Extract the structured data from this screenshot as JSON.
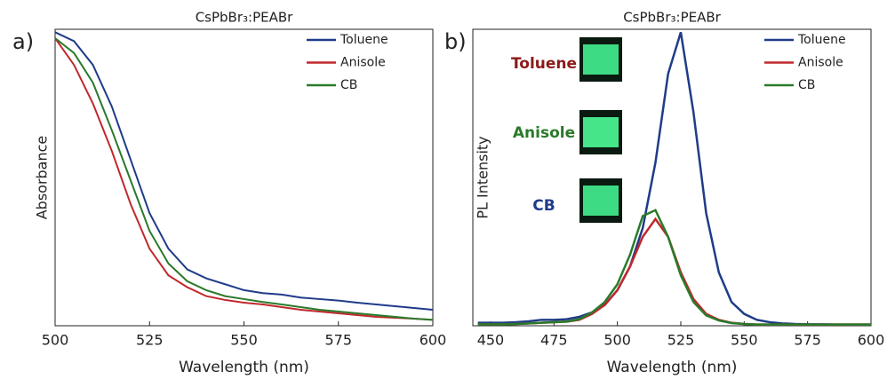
{
  "chart_data": [
    {
      "type": "line",
      "panel_label": "a)",
      "title": "CsPbBr₃:PEABr",
      "xlabel": "Wavelength (nm)",
      "ylabel": "Absorbance",
      "x": [
        500,
        505,
        510,
        515,
        520,
        525,
        530,
        535,
        540,
        545,
        550,
        555,
        560,
        565,
        570,
        575,
        580,
        585,
        590,
        595,
        600
      ],
      "xlim": [
        500,
        600
      ],
      "xticks": [
        500,
        525,
        550,
        575,
        600
      ],
      "ylim": [
        0,
        1
      ],
      "legend": "upper right",
      "series": [
        {
          "name": "Toluene",
          "color": "#1f3c88",
          "values": [
            0.99,
            0.96,
            0.88,
            0.74,
            0.56,
            0.38,
            0.26,
            0.19,
            0.16,
            0.14,
            0.12,
            0.11,
            0.105,
            0.095,
            0.09,
            0.085,
            0.078,
            0.072,
            0.066,
            0.06,
            0.054
          ]
        },
        {
          "name": "Anisole",
          "color": "#c0282d",
          "values": [
            0.97,
            0.88,
            0.75,
            0.59,
            0.41,
            0.26,
            0.17,
            0.13,
            0.1,
            0.087,
            0.078,
            0.072,
            0.063,
            0.054,
            0.048,
            0.042,
            0.036,
            0.03,
            0.027,
            0.024,
            0.02
          ]
        },
        {
          "name": "CB",
          "color": "#2a7a2a",
          "values": [
            0.97,
            0.92,
            0.82,
            0.66,
            0.49,
            0.32,
            0.21,
            0.15,
            0.12,
            0.1,
            0.09,
            0.08,
            0.072,
            0.063,
            0.054,
            0.048,
            0.042,
            0.036,
            0.03,
            0.024,
            0.02
          ]
        }
      ]
    },
    {
      "type": "line",
      "panel_label": "b)",
      "title": "CsPbBr₃:PEABr",
      "xlabel": "Wavelength (nm)",
      "ylabel": "PL Intensity",
      "x": [
        445,
        450,
        455,
        460,
        465,
        470,
        475,
        480,
        485,
        490,
        495,
        500,
        505,
        510,
        515,
        520,
        525,
        530,
        535,
        540,
        545,
        550,
        555,
        560,
        565,
        570,
        575,
        580,
        585,
        590,
        595,
        600
      ],
      "xlim": [
        443,
        600
      ],
      "xticks": [
        450,
        475,
        500,
        525,
        550,
        575,
        600
      ],
      "ylim": [
        0,
        1
      ],
      "legend": "upper right",
      "annotations": [
        {
          "text": "Toluene",
          "color": "#8b1a1a"
        },
        {
          "text": "Anisole",
          "color": "#2a7a2a"
        },
        {
          "text": "CB",
          "color": "#1f3c88"
        }
      ],
      "series": [
        {
          "name": "Toluene",
          "color": "#1f3c88",
          "values": [
            0.01,
            0.01,
            0.01,
            0.012,
            0.015,
            0.02,
            0.02,
            0.022,
            0.03,
            0.045,
            0.07,
            0.12,
            0.2,
            0.33,
            0.55,
            0.85,
            0.99,
            0.72,
            0.38,
            0.18,
            0.08,
            0.04,
            0.02,
            0.012,
            0.008,
            0.006,
            0.005,
            0.005,
            0.004,
            0.004,
            0.004,
            0.004
          ]
        },
        {
          "name": "Anisole",
          "color": "#c0282d",
          "values": [
            0.005,
            0.005,
            0.005,
            0.006,
            0.008,
            0.01,
            0.012,
            0.014,
            0.02,
            0.04,
            0.07,
            0.12,
            0.2,
            0.3,
            0.36,
            0.3,
            0.18,
            0.09,
            0.04,
            0.02,
            0.01,
            0.006,
            0.004,
            0.004,
            0.004,
            0.004,
            0.004,
            0.004,
            0.004,
            0.004,
            0.004,
            0.004
          ]
        },
        {
          "name": "CB",
          "color": "#2a7a2a",
          "values": [
            0.005,
            0.005,
            0.005,
            0.006,
            0.008,
            0.01,
            0.012,
            0.014,
            0.022,
            0.045,
            0.08,
            0.14,
            0.24,
            0.37,
            0.39,
            0.3,
            0.17,
            0.08,
            0.035,
            0.018,
            0.009,
            0.006,
            0.004,
            0.004,
            0.004,
            0.004,
            0.004,
            0.004,
            0.004,
            0.004,
            0.004,
            0.004
          ]
        }
      ]
    }
  ]
}
